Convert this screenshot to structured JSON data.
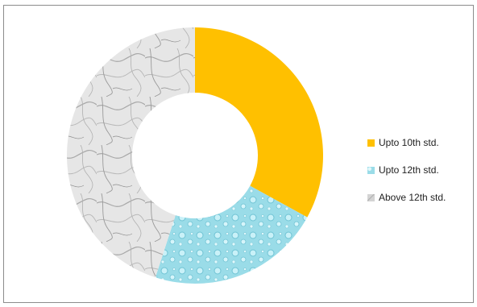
{
  "chart_data": {
    "type": "pie",
    "variant": "donut",
    "title": "",
    "labels": [
      "Upto 10th std.",
      "Upto 12th std.",
      "Above 12th std."
    ],
    "values": [
      33,
      22,
      45
    ],
    "colors": [
      "#FFC000",
      "#9ADCE8",
      "#D4D4D4"
    ],
    "fills": [
      "solid",
      "water-droplet-texture",
      "marble-texture"
    ],
    "legend_position": "right"
  }
}
